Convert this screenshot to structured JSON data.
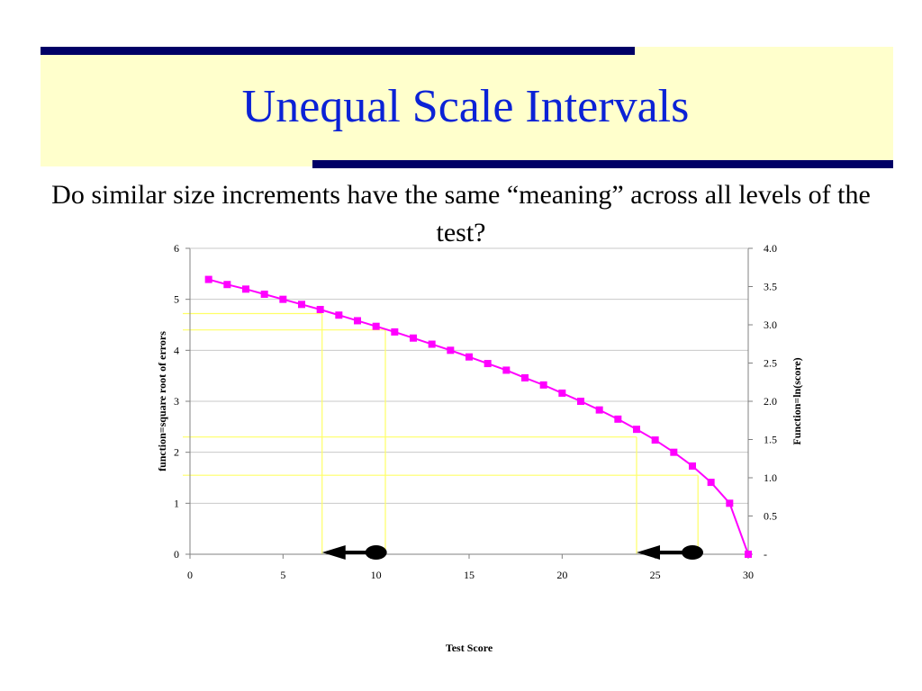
{
  "slide": {
    "title": "Unequal Scale Intervals",
    "subtitle": "Do similar size increments have the same “meaning” across all levels of the test?"
  },
  "colors": {
    "title": "#0b22d6",
    "band": "#ffffcc",
    "bars": "#000066",
    "series": "#ff00ff",
    "guides": "#ffff66"
  },
  "chart_data": {
    "type": "line",
    "xlabel": "Test Score",
    "ylabel": "function=square root of errors",
    "y2label": "Function=ln(score)",
    "xlim": [
      0,
      30
    ],
    "ylim": [
      0,
      6
    ],
    "y2lim": [
      0,
      4.0
    ],
    "x_ticks": [
      "0",
      "5",
      "10",
      "15",
      "20",
      "25",
      "30"
    ],
    "y_ticks": [
      "0",
      "1",
      "2",
      "3",
      "4",
      "5",
      "6"
    ],
    "y2_ticks": [
      "-",
      "0.5",
      "1.0",
      "1.5",
      "2.0",
      "2.5",
      "3.0",
      "3.5",
      "4.0"
    ],
    "grid": "horizontal",
    "series": [
      {
        "marker": "square",
        "x": [
          1,
          2,
          3,
          4,
          5,
          6,
          7,
          8,
          9,
          10,
          11,
          12,
          13,
          14,
          15,
          16,
          17,
          18,
          19,
          20,
          21,
          22,
          23,
          24,
          25,
          26,
          27,
          28,
          29,
          30
        ],
        "y": [
          5.39,
          5.29,
          5.2,
          5.1,
          5.0,
          4.9,
          4.8,
          4.69,
          4.58,
          4.47,
          4.36,
          4.24,
          4.12,
          4.0,
          3.87,
          3.74,
          3.61,
          3.46,
          3.32,
          3.16,
          3.0,
          2.83,
          2.65,
          2.45,
          2.24,
          2.0,
          1.73,
          1.41,
          1.0,
          0.0
        ]
      }
    ],
    "guide_lines": [
      {
        "x": 7.1,
        "y": 4.72
      },
      {
        "x": 10.5,
        "y": 4.4
      },
      {
        "x": 24.0,
        "y": 2.3
      },
      {
        "x": 27.3,
        "y": 1.55
      }
    ],
    "arrows": [
      {
        "from_x": 10.0,
        "to_x": 7.1
      },
      {
        "from_x": 27.0,
        "to_x": 24.0
      }
    ]
  }
}
